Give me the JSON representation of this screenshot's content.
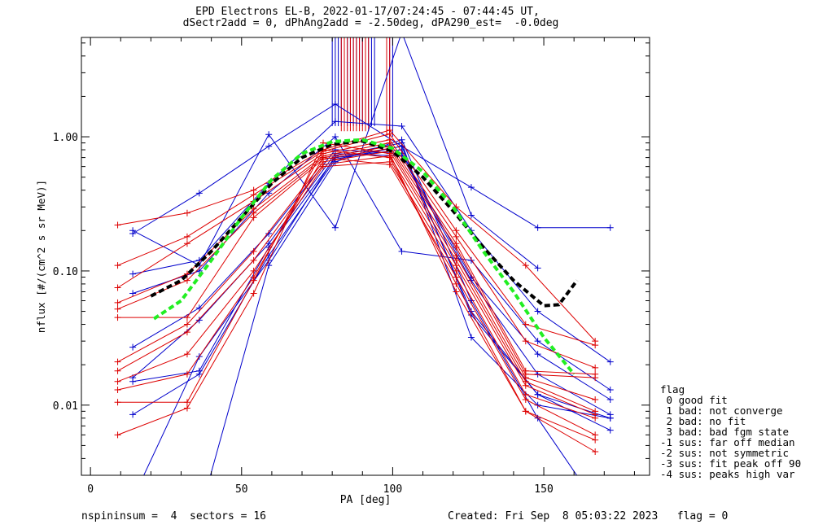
{
  "title_line1": "EPD Electrons EL-B, 2022-01-17/07:24:45 - 07:44:45 UT,",
  "title_line2": "dSectr2add = 0, dPhAng2add = -2.50deg, dPA290_est=  -0.0deg",
  "footer": {
    "left": "nspininsum =  4  sectors = 16",
    "right": "Created: Fri Sep  8 05:03:22 2023   flag = 0"
  },
  "legend": {
    "title": "flag",
    "items": [
      " 0 good fit",
      " 1 bad: not converge",
      " 2 bad: no fit",
      " 3 bad: bad fgm state",
      "-1 sus: far off median",
      "-2 sus: not symmetric",
      "-3 sus: fit peak off 90",
      "-4 sus: peaks high var"
    ]
  },
  "colors": {
    "blue_series": "#0000cc",
    "red_series": "#dd0000",
    "fit_black": "#000000",
    "fit_green": "#22ee22"
  },
  "chart_data": {
    "type": "line",
    "xlabel": "PA [deg]",
    "ylabel": "nflux [#/(cm^2 s sr MeV)]",
    "xlim": [
      -3,
      185
    ],
    "ylim": [
      0.003,
      5.5
    ],
    "yscale": "log",
    "x_ticks": [
      0,
      50,
      100,
      150
    ],
    "y_ticks": [
      {
        "v": 0.01,
        "label": "0.01"
      },
      {
        "v": 0.1,
        "label": "0.10"
      },
      {
        "v": 1.0,
        "label": "1.00"
      }
    ],
    "series": [
      {
        "color": "blue",
        "points": [
          [
            14,
            0.19
          ],
          [
            36,
            0.38
          ],
          [
            59,
            0.85
          ],
          [
            81,
            1.75
          ],
          [
            103,
            0.85
          ],
          [
            126,
            0.42
          ],
          [
            148,
            0.21
          ],
          [
            172,
            0.21
          ]
        ]
      },
      {
        "color": "blue",
        "points": [
          [
            14,
            0.2
          ],
          [
            36,
            0.11
          ],
          [
            59,
            1.04
          ],
          [
            81,
            0.21
          ],
          [
            103,
            6.0
          ],
          [
            126,
            0.26
          ],
          [
            148,
            0.105
          ]
        ]
      },
      {
        "color": "blue",
        "points": [
          [
            14,
            0.095
          ],
          [
            36,
            0.12
          ],
          [
            59,
            0.45
          ],
          [
            81,
            1.3
          ],
          [
            103,
            1.2
          ],
          [
            126,
            0.2
          ],
          [
            148,
            0.05
          ],
          [
            172,
            0.021
          ]
        ]
      },
      {
        "color": "blue",
        "points": [
          [
            14,
            0.068
          ],
          [
            36,
            0.1
          ],
          [
            59,
            0.38
          ],
          [
            81,
            1.0
          ],
          [
            103,
            0.14
          ],
          [
            126,
            0.12
          ],
          [
            148,
            0.03
          ],
          [
            172,
            0.013
          ]
        ]
      },
      {
        "color": "blue",
        "points": [
          [
            14,
            0.027
          ],
          [
            36,
            0.053
          ],
          [
            59,
            0.19
          ],
          [
            81,
            0.8
          ],
          [
            103,
            0.75
          ],
          [
            126,
            0.09
          ],
          [
            148,
            0.024
          ],
          [
            172,
            0.011
          ]
        ]
      },
      {
        "color": "blue",
        "points": [
          [
            14,
            0.016
          ],
          [
            36,
            0.043
          ],
          [
            59,
            0.16
          ],
          [
            81,
            0.75
          ],
          [
            103,
            0.72
          ],
          [
            126,
            0.085
          ],
          [
            148,
            0.017
          ],
          [
            172,
            0.0085
          ]
        ]
      },
      {
        "color": "blue",
        "points": [
          [
            14,
            0.015
          ],
          [
            36,
            0.018
          ],
          [
            59,
            0.15
          ],
          [
            81,
            0.7
          ],
          [
            103,
            0.8
          ],
          [
            126,
            0.05
          ],
          [
            148,
            0.012
          ],
          [
            172,
            0.008
          ]
        ]
      },
      {
        "color": "blue",
        "points": [
          [
            14,
            0.0085
          ],
          [
            36,
            0.017
          ],
          [
            59,
            0.13
          ],
          [
            81,
            0.68
          ],
          [
            103,
            0.85
          ],
          [
            126,
            0.047
          ],
          [
            148,
            0.012
          ],
          [
            172,
            0.0065
          ]
        ]
      },
      {
        "color": "blue",
        "points": [
          [
            14,
            0.002
          ],
          [
            36,
            0.023
          ],
          [
            59,
            0.12
          ],
          [
            81,
            0.72
          ],
          [
            103,
            0.9
          ],
          [
            126,
            0.032
          ],
          [
            148,
            0.01
          ],
          [
            172,
            0.008
          ]
        ]
      },
      {
        "color": "blue",
        "points": [
          [
            36,
            0.0015
          ],
          [
            59,
            0.11
          ],
          [
            81,
            0.65
          ],
          [
            103,
            0.95
          ],
          [
            126,
            0.06
          ],
          [
            148,
            0.008
          ],
          [
            165,
            0.0022
          ]
        ]
      },
      {
        "color": "red",
        "points": [
          [
            9,
            0.22
          ],
          [
            32,
            0.27
          ],
          [
            54,
            0.4
          ],
          [
            77,
            0.8
          ],
          [
            99,
            1.12
          ],
          [
            121,
            0.3
          ],
          [
            144,
            0.11
          ],
          [
            167,
            0.03
          ]
        ]
      },
      {
        "color": "red",
        "points": [
          [
            9,
            0.11
          ],
          [
            32,
            0.18
          ],
          [
            54,
            0.37
          ],
          [
            77,
            0.78
          ],
          [
            99,
            1.05
          ],
          [
            121,
            0.2
          ],
          [
            144,
            0.04
          ],
          [
            167,
            0.028
          ]
        ]
      },
      {
        "color": "red",
        "points": [
          [
            9,
            0.075
          ],
          [
            32,
            0.16
          ],
          [
            54,
            0.33
          ],
          [
            77,
            0.75
          ],
          [
            99,
            0.95
          ],
          [
            121,
            0.18
          ],
          [
            144,
            0.03
          ],
          [
            167,
            0.019
          ]
        ]
      },
      {
        "color": "red",
        "points": [
          [
            9,
            0.058
          ],
          [
            32,
            0.095
          ],
          [
            54,
            0.29
          ],
          [
            77,
            0.72
          ],
          [
            99,
            0.9
          ],
          [
            121,
            0.16
          ],
          [
            144,
            0.018
          ],
          [
            167,
            0.017
          ]
        ]
      },
      {
        "color": "red",
        "points": [
          [
            9,
            0.052
          ],
          [
            32,
            0.085
          ],
          [
            54,
            0.27
          ],
          [
            77,
            0.7
          ],
          [
            99,
            0.85
          ],
          [
            121,
            0.15
          ],
          [
            144,
            0.017
          ],
          [
            167,
            0.016
          ]
        ]
      },
      {
        "color": "red",
        "points": [
          [
            9,
            0.045
          ],
          [
            32,
            0.045
          ],
          [
            54,
            0.25
          ],
          [
            77,
            0.68
          ],
          [
            99,
            0.82
          ],
          [
            121,
            0.13
          ],
          [
            144,
            0.016
          ],
          [
            167,
            0.011
          ]
        ]
      },
      {
        "color": "red",
        "points": [
          [
            9,
            0.021
          ],
          [
            32,
            0.04
          ],
          [
            54,
            0.14
          ],
          [
            77,
            0.65
          ],
          [
            99,
            0.78
          ],
          [
            121,
            0.12
          ],
          [
            144,
            0.015
          ],
          [
            167,
            0.009
          ]
        ]
      },
      {
        "color": "red",
        "points": [
          [
            9,
            0.018
          ],
          [
            32,
            0.035
          ],
          [
            54,
            0.12
          ],
          [
            77,
            0.62
          ],
          [
            99,
            0.72
          ],
          [
            121,
            0.11
          ],
          [
            144,
            0.014
          ],
          [
            167,
            0.0085
          ]
        ]
      },
      {
        "color": "red",
        "points": [
          [
            9,
            0.015
          ],
          [
            32,
            0.024
          ],
          [
            54,
            0.1
          ],
          [
            77,
            0.6
          ],
          [
            99,
            0.65
          ],
          [
            121,
            0.1
          ],
          [
            144,
            0.012
          ],
          [
            167,
            0.008
          ]
        ]
      },
      {
        "color": "red",
        "points": [
          [
            9,
            0.013
          ],
          [
            32,
            0.017
          ],
          [
            54,
            0.09
          ],
          [
            77,
            0.7
          ],
          [
            99,
            0.62
          ],
          [
            121,
            0.09
          ],
          [
            144,
            0.011
          ],
          [
            167,
            0.006
          ]
        ]
      },
      {
        "color": "red",
        "points": [
          [
            9,
            0.0105
          ],
          [
            32,
            0.0105
          ],
          [
            54,
            0.085
          ],
          [
            77,
            0.8
          ],
          [
            99,
            0.7
          ],
          [
            121,
            0.08
          ],
          [
            144,
            0.009
          ],
          [
            167,
            0.0055
          ]
        ]
      },
      {
        "color": "red",
        "points": [
          [
            9,
            0.006
          ],
          [
            32,
            0.0095
          ],
          [
            54,
            0.068
          ],
          [
            77,
            0.9
          ],
          [
            99,
            0.75
          ],
          [
            121,
            0.07
          ],
          [
            144,
            0.009
          ],
          [
            167,
            0.0045
          ]
        ]
      }
    ],
    "fits": [
      {
        "color": "black",
        "points": [
          [
            20,
            0.065
          ],
          [
            30,
            0.085
          ],
          [
            40,
            0.14
          ],
          [
            50,
            0.25
          ],
          [
            60,
            0.45
          ],
          [
            70,
            0.7
          ],
          [
            80,
            0.88
          ],
          [
            90,
            0.93
          ],
          [
            100,
            0.78
          ],
          [
            110,
            0.5
          ],
          [
            120,
            0.28
          ],
          [
            130,
            0.15
          ],
          [
            140,
            0.085
          ],
          [
            150,
            0.055
          ],
          [
            155,
            0.056
          ],
          [
            161,
            0.085
          ]
        ]
      },
      {
        "color": "green",
        "points": [
          [
            21,
            0.044
          ],
          [
            30,
            0.06
          ],
          [
            40,
            0.12
          ],
          [
            50,
            0.25
          ],
          [
            60,
            0.48
          ],
          [
            70,
            0.75
          ],
          [
            80,
            0.92
          ],
          [
            90,
            0.95
          ],
          [
            100,
            0.82
          ],
          [
            110,
            0.55
          ],
          [
            120,
            0.3
          ],
          [
            130,
            0.14
          ],
          [
            140,
            0.07
          ],
          [
            150,
            0.032
          ],
          [
            160,
            0.017
          ]
        ]
      }
    ],
    "vertical_spikes": [
      {
        "color": "blue",
        "x": [
          80,
          81,
          82,
          83,
          84,
          85,
          86,
          87,
          88,
          89,
          90,
          91,
          92,
          93,
          94
        ],
        "y_bottom": 1.2
      },
      {
        "color": "red",
        "x": [
          83,
          84,
          85,
          86,
          87,
          88,
          89,
          90,
          91,
          92
        ],
        "y_bottom": 1.1
      },
      {
        "color": "blue",
        "x": [
          99,
          100
        ],
        "y_bottom": 1.0
      },
      {
        "color": "red",
        "x": [
          98,
          99
        ],
        "y_bottom": 1.0
      }
    ]
  }
}
